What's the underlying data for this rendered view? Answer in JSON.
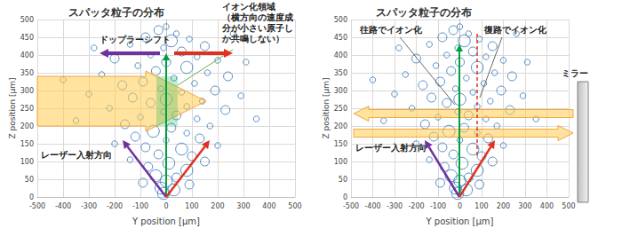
{
  "chart_data": [
    {
      "type": "scatter",
      "title": "スパッタ粒子の分布",
      "x_label": "Y position [μm]",
      "y_label": "Z position [μm]",
      "xlim": [
        -500,
        500
      ],
      "xticks": [
        -500,
        -400,
        -300,
        -200,
        -100,
        0,
        100,
        200,
        300,
        400,
        500
      ],
      "ylim": [
        0,
        500
      ],
      "yticks": [
        0,
        50,
        100,
        150,
        200,
        250,
        300,
        350,
        400,
        450,
        500
      ],
      "grid": true,
      "color": "#2e75b6",
      "marker": "circle",
      "x": [
        0,
        -30,
        40,
        -80,
        90,
        20,
        -140,
        150,
        -10,
        60,
        -60,
        120,
        -200,
        200,
        0,
        -110,
        80,
        -40,
        160,
        -250,
        240,
        30,
        -90,
        110,
        -170,
        -20,
        190,
        60,
        -300,
        290,
        -130,
        0,
        140,
        -60,
        80,
        -220,
        230,
        -10,
        40,
        -100,
        120,
        -350,
        350,
        -160,
        170,
        20,
        -50,
        80,
        -120,
        130,
        0,
        -200,
        200,
        -80,
        60,
        -30,
        100,
        -140,
        150,
        10,
        -70,
        80,
        -40,
        40,
        0,
        -90,
        90,
        -20,
        30,
        -10,
        -400,
        310,
        -280,
        260
      ],
      "values": [
        480,
        470,
        460,
        450,
        445,
        440,
        430,
        425,
        420,
        410,
        400,
        395,
        390,
        385,
        380,
        370,
        365,
        355,
        350,
        345,
        340,
        335,
        325,
        320,
        315,
        305,
        300,
        295,
        290,
        285,
        280,
        275,
        270,
        265,
        255,
        250,
        245,
        240,
        230,
        225,
        220,
        215,
        220,
        205,
        200,
        195,
        185,
        180,
        170,
        165,
        160,
        150,
        145,
        140,
        135,
        120,
        115,
        105,
        100,
        95,
        85,
        75,
        60,
        55,
        45,
        40,
        35,
        25,
        20,
        10,
        330,
        380,
        420,
        460
      ],
      "sizes": [
        1,
        2,
        1,
        2,
        1,
        3,
        1,
        2,
        1,
        2,
        1,
        1,
        2,
        1,
        2,
        1,
        3,
        2,
        1,
        1,
        2,
        1,
        2,
        1,
        2,
        1,
        2,
        1,
        1,
        1,
        2,
        3,
        1,
        2,
        1,
        1,
        2,
        1,
        2,
        1,
        1,
        1,
        1,
        2,
        1,
        2,
        3,
        1,
        2,
        2,
        1,
        1,
        1,
        2,
        3,
        2,
        2,
        1,
        2,
        3,
        2,
        3,
        3,
        2,
        3,
        2,
        2,
        3,
        3,
        3,
        1,
        1,
        1,
        1
      ],
      "annotations": [
        "イオン化領域\n（横方向の速度成\n分が小さい原子し\nか共鳴しない）",
        "ドップラーシフト",
        "レーザー入射方向"
      ]
    },
    {
      "type": "scatter",
      "title": "スパッタ粒子の分布",
      "x_label": "Y position [μm]",
      "y_label": "Z position [μm]",
      "xlim": [
        -500,
        500
      ],
      "xticks": [
        -500,
        -400,
        -300,
        -200,
        -100,
        0,
        100,
        200,
        300,
        400,
        500
      ],
      "ylim": [
        0,
        500
      ],
      "yticks": [
        0,
        50,
        100,
        150,
        200,
        250,
        300,
        350,
        400,
        450,
        500
      ],
      "grid": true,
      "color": "#2e75b6",
      "marker": "circle",
      "x": [
        0,
        -30,
        40,
        -80,
        90,
        20,
        -140,
        150,
        -10,
        60,
        -60,
        120,
        -200,
        200,
        0,
        -110,
        80,
        -40,
        160,
        -250,
        240,
        30,
        -90,
        110,
        -170,
        -20,
        190,
        60,
        -300,
        290,
        -130,
        0,
        140,
        -60,
        80,
        -220,
        230,
        -10,
        40,
        -100,
        120,
        -350,
        350,
        -160,
        170,
        20,
        -50,
        80,
        -120,
        130,
        0,
        -200,
        200,
        -80,
        60,
        -30,
        100,
        -140,
        150,
        10,
        -70,
        80,
        -40,
        40,
        0,
        -90,
        90,
        -20,
        30,
        -10,
        -400,
        310,
        -280,
        260
      ],
      "values": [
        480,
        470,
        460,
        450,
        445,
        440,
        430,
        425,
        420,
        410,
        400,
        395,
        390,
        385,
        380,
        370,
        365,
        355,
        350,
        345,
        340,
        335,
        325,
        320,
        315,
        305,
        300,
        295,
        290,
        285,
        280,
        275,
        270,
        265,
        255,
        250,
        245,
        240,
        230,
        225,
        220,
        215,
        220,
        205,
        200,
        195,
        185,
        180,
        170,
        165,
        160,
        150,
        145,
        140,
        135,
        120,
        115,
        105,
        100,
        95,
        85,
        75,
        60,
        55,
        45,
        40,
        35,
        25,
        20,
        10,
        330,
        380,
        420,
        460
      ],
      "sizes": [
        1,
        2,
        1,
        2,
        1,
        3,
        1,
        2,
        1,
        2,
        1,
        1,
        2,
        1,
        2,
        1,
        3,
        2,
        1,
        1,
        2,
        1,
        2,
        1,
        2,
        1,
        2,
        1,
        1,
        1,
        2,
        3,
        1,
        2,
        1,
        1,
        2,
        1,
        2,
        1,
        1,
        1,
        1,
        2,
        1,
        2,
        3,
        1,
        2,
        2,
        1,
        1,
        1,
        2,
        3,
        2,
        2,
        1,
        2,
        3,
        2,
        3,
        3,
        2,
        3,
        2,
        2,
        3,
        3,
        3,
        1,
        1,
        1,
        1
      ],
      "annotations": [
        "往路でイオン化",
        "復路でイオン化",
        "レーザー入射方向",
        "ミラー"
      ]
    }
  ]
}
